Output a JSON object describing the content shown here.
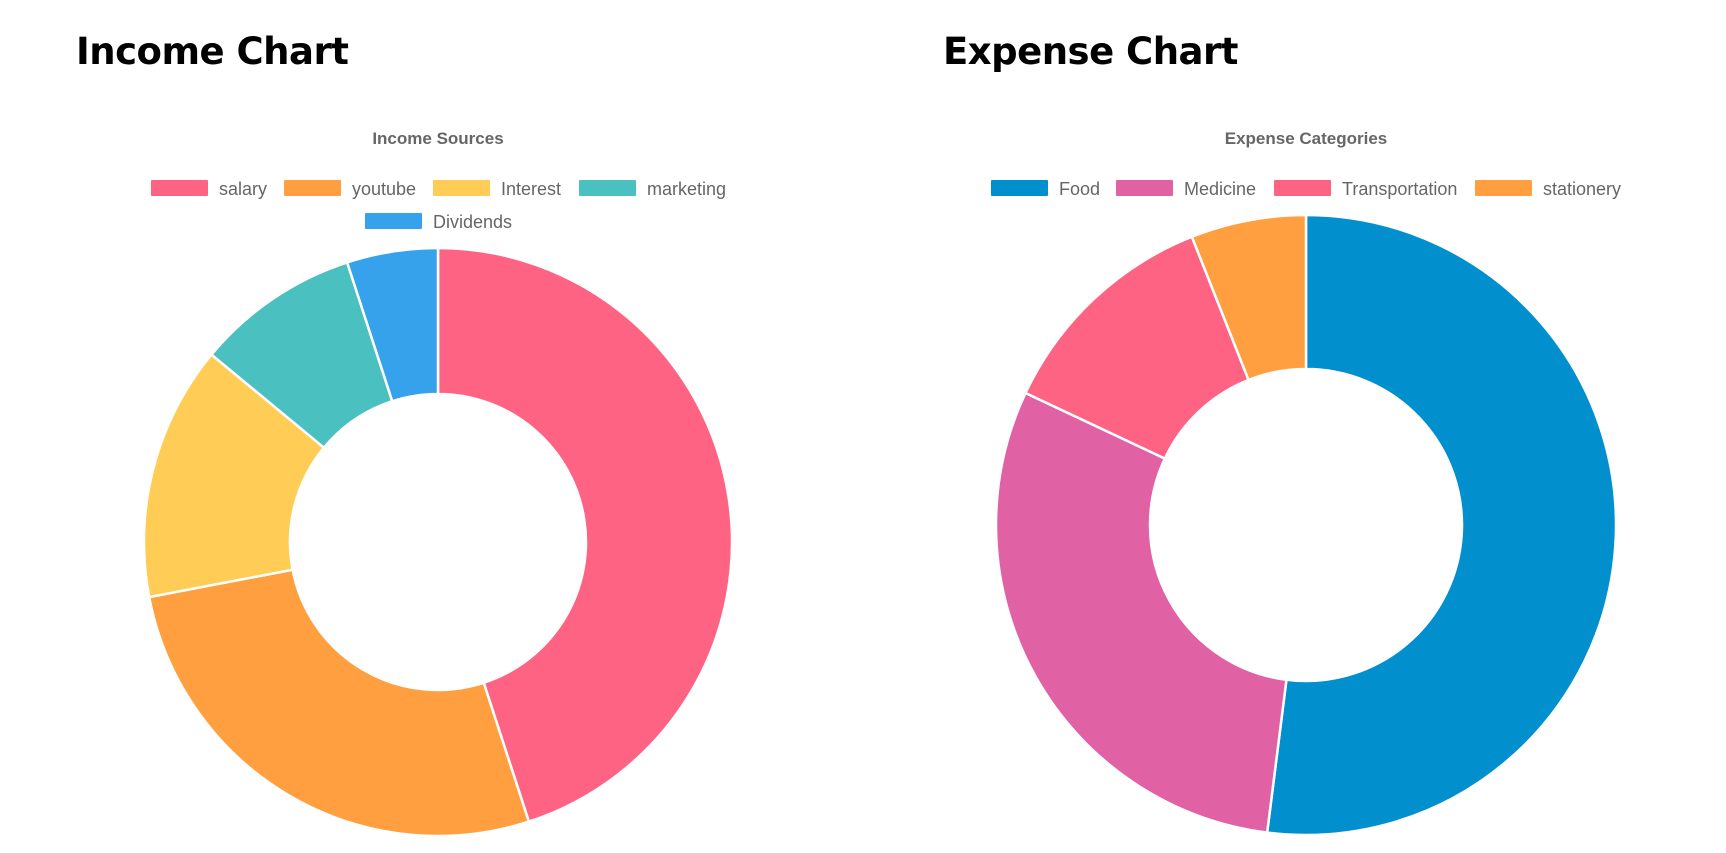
{
  "headings": {
    "income": "Income Chart",
    "expense": "Expense Chart"
  },
  "chart_data": [
    {
      "type": "pie",
      "variant": "doughnut",
      "title": "Income Sources",
      "legend_position": "top",
      "categories": [
        "salary",
        "youtube",
        "Interest",
        "marketing",
        "Dividends"
      ],
      "values": [
        45,
        27,
        14,
        9,
        5
      ],
      "colors": [
        "#FF6384",
        "#FF9F40",
        "#FFCD56",
        "#4BC0C0",
        "#36A2EB"
      ]
    },
    {
      "type": "pie",
      "variant": "doughnut",
      "title": "Expense Categories",
      "legend_position": "top",
      "categories": [
        "Food",
        "Medicine",
        "Transportation",
        "stationery"
      ],
      "values": [
        52,
        30,
        12,
        6
      ],
      "colors": [
        "#0190CD",
        "#E062A4",
        "#FF6384",
        "#FF9F40"
      ]
    }
  ]
}
